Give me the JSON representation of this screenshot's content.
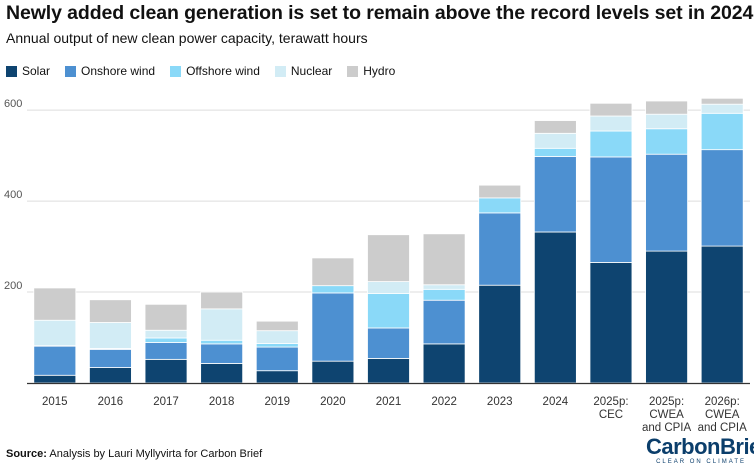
{
  "title": "Newly added clean generation is set to remain above the record levels set in 2024",
  "subtitle": "Annual output of new clean power capacity, terawatt hours",
  "source_label": "Source:",
  "source_text": "Analysis by Lauri Myllyvirta for Carbon Brief",
  "logo": {
    "main": "CarbonBrief",
    "tagline": "CLEAR ON CLIMATE"
  },
  "colors": {
    "Solar": "#0e4470",
    "Onshore wind": "#4d90d1",
    "Offshore wind": "#8ad9f8",
    "Nuclear": "#d2ecf5",
    "Hydro": "#cccccc",
    "grid": "#dddddd",
    "axis": "#333333"
  },
  "chart_data": {
    "type": "bar",
    "stacked": true,
    "title": "Newly added clean generation is set to remain above the record levels set in 2024",
    "subtitle": "Annual output of new clean power capacity, terawatt hours",
    "xlabel": "",
    "ylabel": "",
    "ylim": [
      0,
      620
    ],
    "yticks": [
      200,
      400,
      600
    ],
    "grid": true,
    "legend_position": "top-left",
    "categories": [
      "2015",
      "2016",
      "2017",
      "2018",
      "2019",
      "2020",
      "2021",
      "2022",
      "2023",
      "2024",
      "2025p: CEC",
      "2025p: CWEA and CPIA",
      "2026p: CWEA and CPIA"
    ],
    "category_lines": [
      [
        "2015"
      ],
      [
        "2016"
      ],
      [
        "2017"
      ],
      [
        "2018"
      ],
      [
        "2019"
      ],
      [
        "2020"
      ],
      [
        "2021"
      ],
      [
        "2022"
      ],
      [
        "2023"
      ],
      [
        "2024"
      ],
      [
        "2025p:",
        "CEC"
      ],
      [
        "2025p:",
        "CWEA",
        "and CPIA"
      ],
      [
        "2026p:",
        "CWEA",
        "and CPIA"
      ]
    ],
    "series": [
      {
        "name": "Solar",
        "values": [
          17,
          34,
          52,
          43,
          27,
          48,
          54,
          86,
          215,
          332,
          265,
          290,
          301
        ]
      },
      {
        "name": "Onshore wind",
        "values": [
          64,
          40,
          37,
          43,
          52,
          150,
          67,
          96,
          159,
          166,
          232,
          213,
          212
        ]
      },
      {
        "name": "Offshore wind",
        "values": [
          1,
          2,
          10,
          8,
          8,
          16,
          76,
          24,
          33,
          18,
          57,
          56,
          80
        ]
      },
      {
        "name": "Nuclear",
        "values": [
          56,
          57,
          17,
          69,
          28,
          0,
          26,
          10,
          0,
          33,
          33,
          32,
          20
        ]
      },
      {
        "name": "Hydro",
        "values": [
          71,
          50,
          57,
          37,
          21,
          61,
          103,
          112,
          28,
          28,
          28,
          29,
          13
        ]
      }
    ]
  }
}
